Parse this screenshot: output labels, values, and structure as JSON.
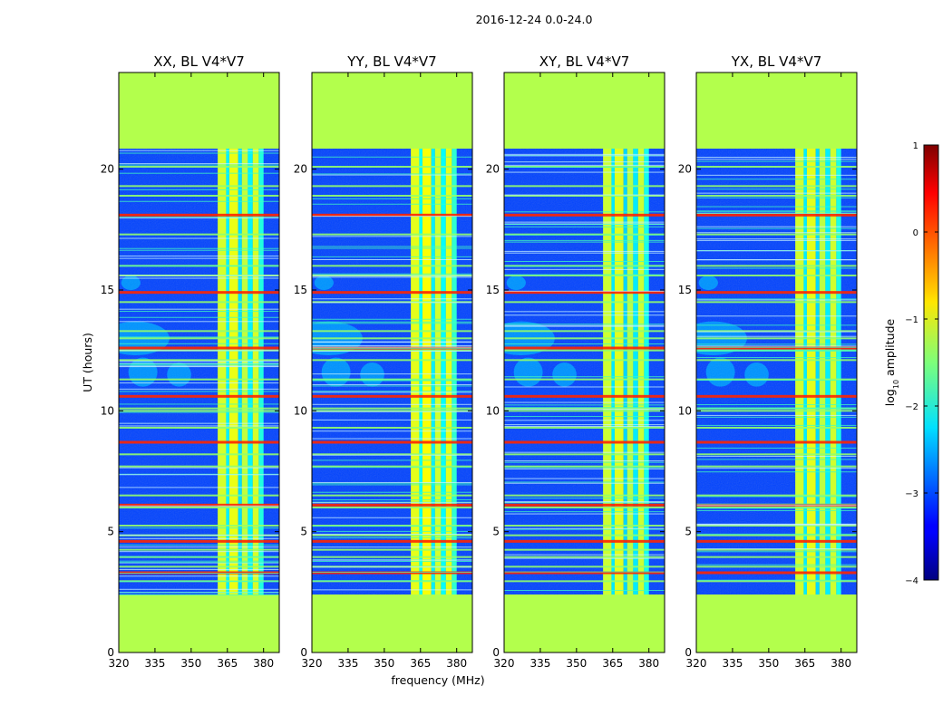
{
  "figure": {
    "suptitle": "2016-12-24 0.0-24.0"
  },
  "chart_data": {
    "type": "heatmap",
    "title": "2016-12-24 0.0-24.0",
    "xlabel": "frequency (MHz)",
    "ylabel": "UT (hours)",
    "xlim": [
      320,
      386.5
    ],
    "ylim": [
      0,
      24
    ],
    "xticks": [
      320,
      335,
      350,
      365,
      380
    ],
    "yticks": [
      0,
      5,
      10,
      15,
      20
    ],
    "xtick_labels": [
      "320",
      "335",
      "350",
      "365",
      "380"
    ],
    "ytick_labels": [
      "0",
      "5",
      "10",
      "15",
      "20"
    ],
    "panels": [
      {
        "title": "XX, BL V4*V7",
        "tint": 0.55
      },
      {
        "title": "YY, BL V4*V7",
        "tint": 0.7
      },
      {
        "title": "XY, BL V4*V7",
        "tint": 0.45
      },
      {
        "title": "YX, BL V4*V7",
        "tint": 0.5
      }
    ],
    "data_time_range_hours": [
      2.4,
      20.85
    ],
    "masked_value": -1.25,
    "bright_band_mhz": [
      361,
      380
    ],
    "flagged_hours": [
      2.95,
      3.3,
      3.55,
      3.95,
      4.25,
      4.6,
      4.85,
      5.25,
      6.0,
      6.1,
      6.5,
      7.7,
      8.2,
      8.7,
      9.3,
      10.0,
      10.1,
      10.6,
      11.3,
      12.1,
      12.5,
      12.6,
      13.0,
      13.3,
      14.5,
      14.9,
      15.6,
      16.0,
      17.3,
      18.1,
      18.9,
      19.3,
      20.1
    ],
    "colorbar": {
      "label": "log",
      "label_subscript": "10",
      "label_suffix": " amplitude",
      "range": [
        -4,
        1
      ],
      "ticks": [
        "1",
        "0",
        "−1",
        "−2",
        "−3",
        "−4"
      ]
    },
    "colors": {
      "masked": "#99ff55",
      "low": "#00007f",
      "high": "#7f0000"
    }
  }
}
